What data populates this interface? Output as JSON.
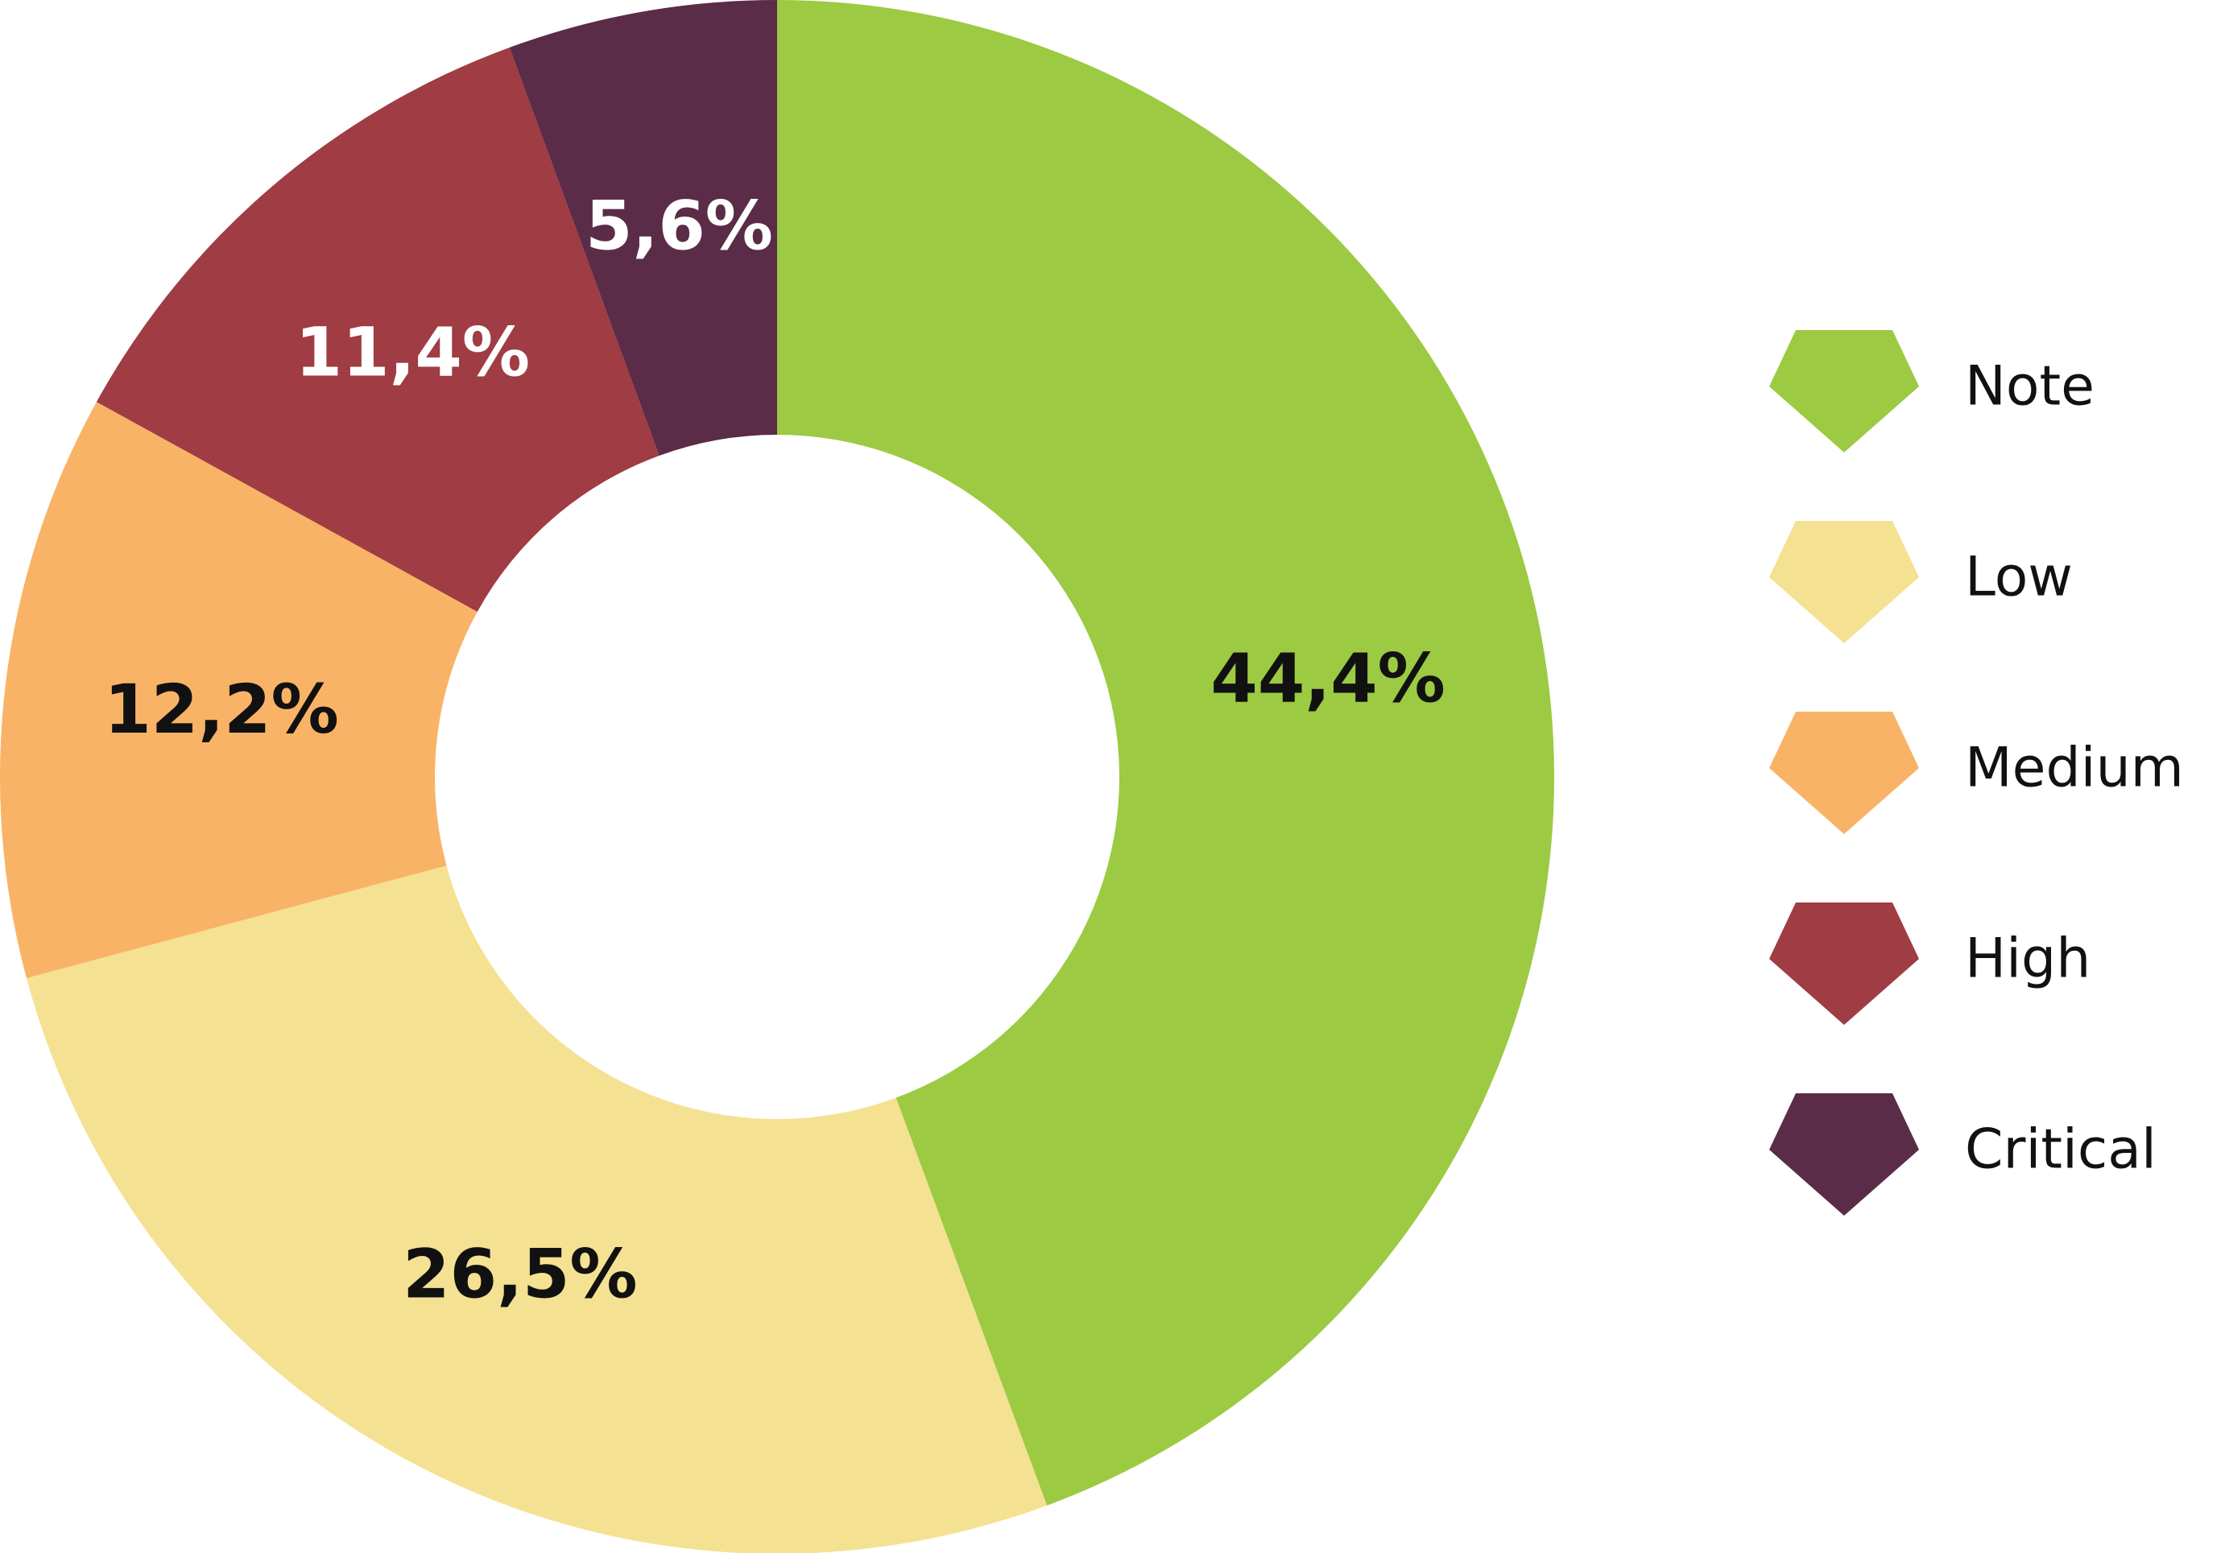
{
  "chart_data": {
    "type": "pie",
    "variant": "donut",
    "legend_position": "right",
    "slices": [
      {
        "name": "Note",
        "value": 44.4,
        "label": "44,4%",
        "color": "#9cca42",
        "label_color": "#111111"
      },
      {
        "name": "Low",
        "value": 26.5,
        "label": "26,5%",
        "color": "#f5e192",
        "label_color": "#111111"
      },
      {
        "name": "Medium",
        "value": 12.2,
        "label": "12,2%",
        "color": "#f9b366",
        "label_color": "#111111"
      },
      {
        "name": "High",
        "value": 11.4,
        "label": "11,4%",
        "color": "#a03c43",
        "label_color": "#ffffff"
      },
      {
        "name": "Critical",
        "value": 5.6,
        "label": "5,6%",
        "color": "#5a2c47",
        "label_color": "#ffffff"
      }
    ]
  }
}
